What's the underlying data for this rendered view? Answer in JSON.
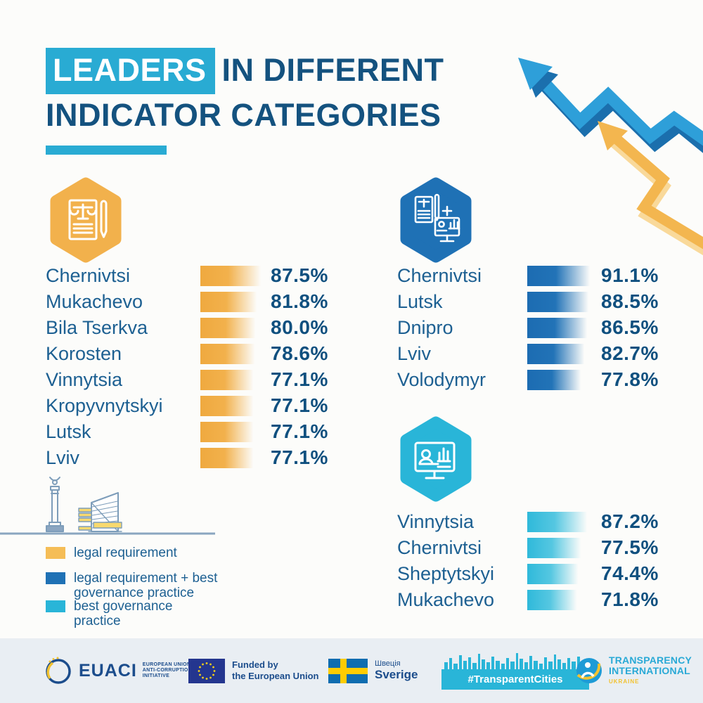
{
  "title": {
    "highlight": "LEADERS",
    "after_highlight": "IN DIFFERENT",
    "line2": "INDICATOR CATEGORIES"
  },
  "colors": {
    "accent_cyan": "#29abd3",
    "navy_text": "#14527f",
    "legal_yellow": "#f2b14c",
    "combo_blue": "#1f71b5",
    "best_cyan": "#29b5d8",
    "footer_bg": "#e9eef3",
    "background": "#fcfcfa"
  },
  "chart_data": [
    {
      "type": "bar",
      "id": "legal",
      "category": "legal requirement",
      "icon": "document-scales-pen-icon",
      "color": "#f2b14c",
      "unit": "%",
      "rows": [
        {
          "city": "Chernivtsi",
          "value": 87.5,
          "display": "87.5%"
        },
        {
          "city": "Mukachevo",
          "value": 81.8,
          "display": "81.8%"
        },
        {
          "city": "Bila Tserkva",
          "value": 80.0,
          "display": "80.0%"
        },
        {
          "city": "Korosten",
          "value": 78.6,
          "display": "78.6%"
        },
        {
          "city": "Vinnytsia",
          "value": 77.1,
          "display": "77.1%"
        },
        {
          "city": "Kropyvnytskyi",
          "value": 77.1,
          "display": "77.1%"
        },
        {
          "city": "Lutsk",
          "value": 77.1,
          "display": "77.1%"
        },
        {
          "city": "Lviv",
          "value": 77.1,
          "display": "77.1%"
        }
      ]
    },
    {
      "type": "bar",
      "id": "combo",
      "category": "legal requirement + best governance practice",
      "icon": "document-plus-monitor-icon",
      "color": "#1f71b5",
      "unit": "%",
      "rows": [
        {
          "city": "Chernivtsi",
          "value": 91.1,
          "display": "91.1%"
        },
        {
          "city": "Lutsk",
          "value": 88.5,
          "display": "88.5%"
        },
        {
          "city": "Dnipro",
          "value": 86.5,
          "display": "86.5%"
        },
        {
          "city": "Lviv",
          "value": 82.7,
          "display": "82.7%"
        },
        {
          "city": "Volodymyr",
          "value": 77.8,
          "display": "77.8%"
        }
      ]
    },
    {
      "type": "bar",
      "id": "best",
      "category": "best governance practice",
      "icon": "monitor-chart-icon",
      "color": "#29b5d8",
      "unit": "%",
      "rows": [
        {
          "city": "Vinnytsia",
          "value": 87.2,
          "display": "87.2%"
        },
        {
          "city": "Chernivtsi",
          "value": 77.5,
          "display": "77.5%"
        },
        {
          "city": "Sheptytskyi",
          "value": 74.4,
          "display": "74.4%"
        },
        {
          "city": "Mukachevo",
          "value": 71.8,
          "display": "71.8%"
        }
      ]
    }
  ],
  "legend": {
    "items": [
      {
        "color": "#f5bd56",
        "line1": "legal requirement",
        "line2": ""
      },
      {
        "color": "#1f71b5",
        "line1": "legal requirement + best",
        "line2": "governance practice"
      },
      {
        "color": "#29b5d8",
        "line1": "best governance",
        "line2": "practice"
      }
    ]
  },
  "footer": {
    "euaci": {
      "wordmark": "EUACI",
      "tagline1": "EUROPEAN UNION",
      "tagline2": "ANTI-CORRUPTION",
      "tagline3": "INITIATIVE"
    },
    "eu": {
      "line1": "Funded by",
      "line2": "the European Union"
    },
    "sweden": {
      "line1": "Швеція",
      "line2": "Sverige"
    },
    "transparent_cities": {
      "label": "#TransparentCities"
    },
    "transparency_international": {
      "line1": "TRANSPARENCY",
      "line2": "INTERNATIONAL",
      "sub": "UKRAINE"
    }
  }
}
